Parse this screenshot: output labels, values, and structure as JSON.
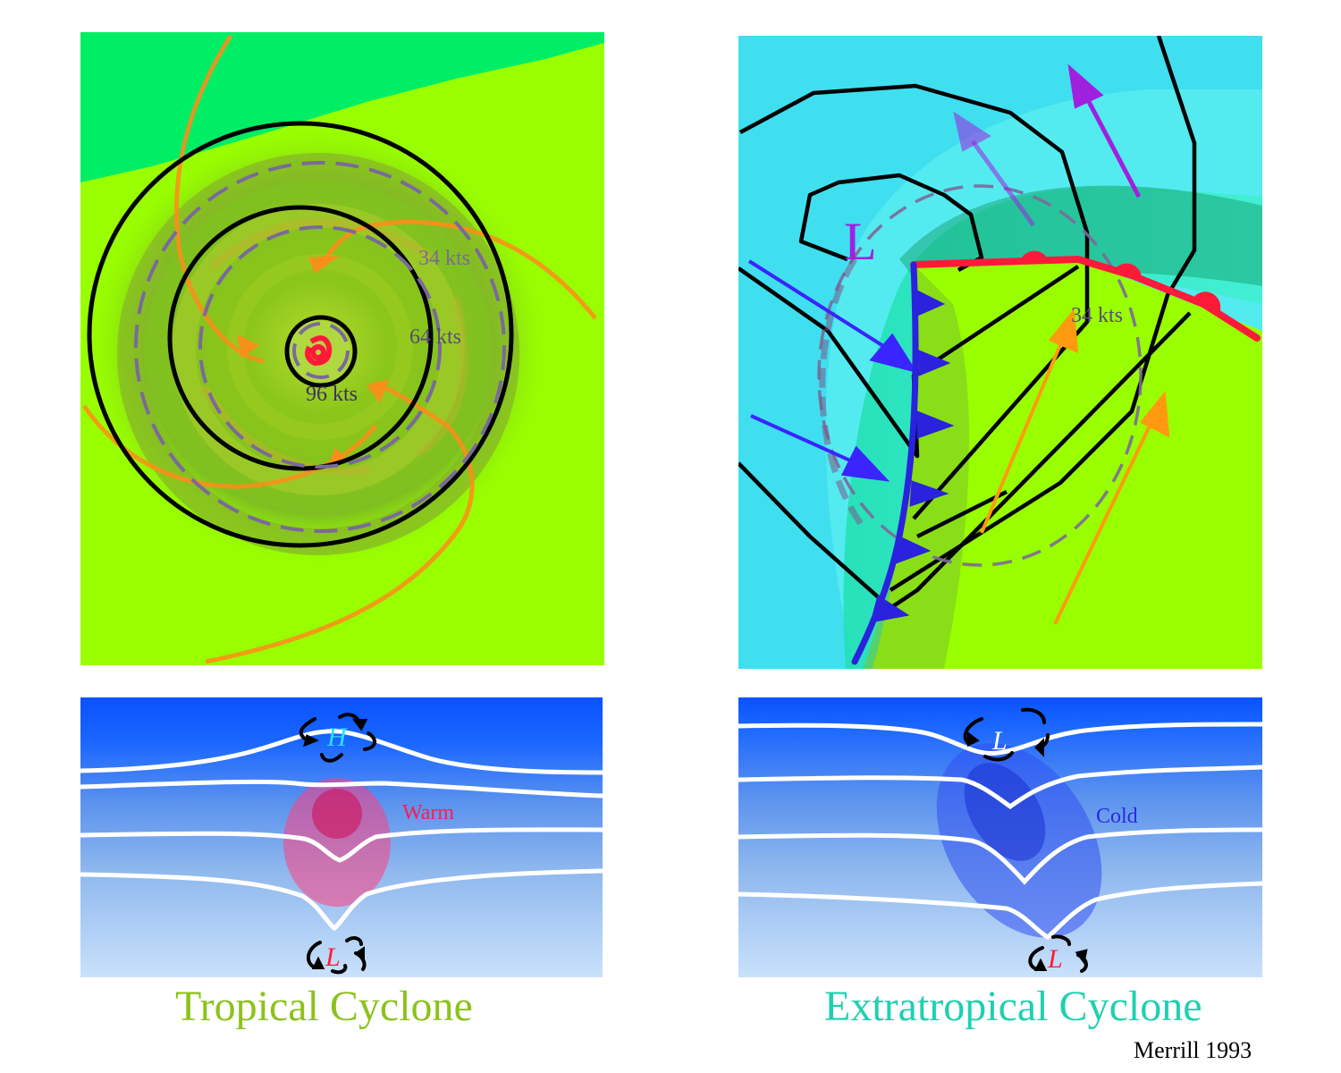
{
  "tropical": {
    "caption": "Tropical Cyclone",
    "wind_labels": {
      "r34": "34 kts",
      "r64": "64 kts",
      "r96": "96 kts"
    },
    "pressure_symbols": {
      "upper": "H",
      "lower": "L"
    },
    "core_label": "Warm"
  },
  "extratropical": {
    "caption": "Extratropical Cyclone",
    "low_label": "L",
    "wind_label": "34 kts",
    "pressure_symbols": {
      "upper": "L",
      "lower": "L"
    },
    "core_label": "Cold"
  },
  "credit": "Merrill 1993",
  "colors": {
    "land": "#99ff00",
    "ocean_edge": "#00ee66",
    "sea": "#3fdff0",
    "isobar": "#000000",
    "wind_radius": "#7a6a9a",
    "inflow": "#ff8c1a",
    "warm_front": "#ff1a3a",
    "cold_front": "#2a22dd",
    "cold_air": "#3a24ff",
    "warm_air": "#ff9a10",
    "outflow": "#a020e0",
    "warm_core": "#e0306a",
    "cold_core": "#2a3ad8"
  }
}
